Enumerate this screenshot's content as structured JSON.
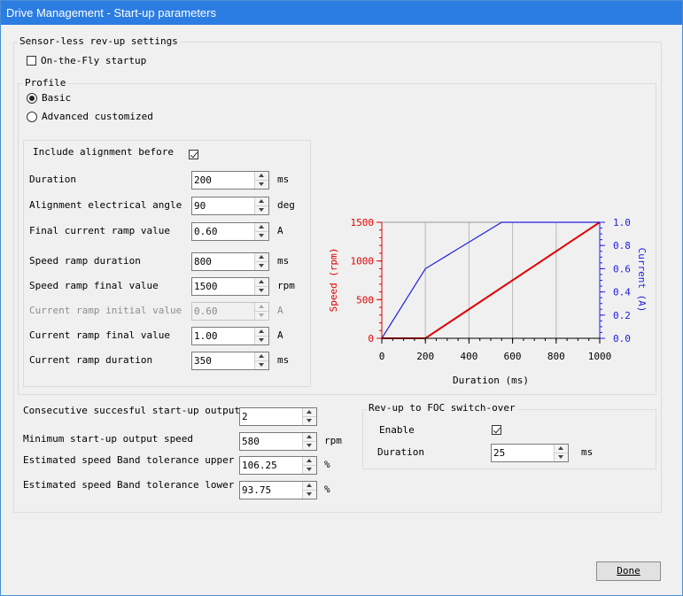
{
  "window": {
    "title": "Drive Management - Start-up parameters"
  },
  "sensorless": {
    "group_title": "Sensor-less rev-up settings",
    "on_the_fly": {
      "label": "On-the-Fly startup",
      "checked": false
    },
    "profile": {
      "group_title": "Profile",
      "options": [
        {
          "label": "Basic",
          "selected": true
        },
        {
          "label": "Advanced customized",
          "selected": false
        }
      ]
    },
    "params": {
      "include_alignment": {
        "label": "Include alignment before",
        "checked": true
      },
      "duration": {
        "label": "Duration",
        "value": "200",
        "unit": "ms"
      },
      "alignment_angle": {
        "label": "Alignment electrical angle",
        "value": "90",
        "unit": "deg"
      },
      "final_current_ramp": {
        "label": "Final current ramp value",
        "value": "0.60",
        "unit": "A"
      },
      "speed_ramp_duration": {
        "label": "Speed ramp duration",
        "value": "800",
        "unit": "ms"
      },
      "speed_ramp_final": {
        "label": "Speed ramp final value",
        "value": "1500",
        "unit": "rpm"
      },
      "current_ramp_initial": {
        "label": "Current ramp initial value",
        "value": "0.60",
        "unit": "A"
      },
      "current_ramp_final": {
        "label": "Current ramp final value",
        "value": "1.00",
        "unit": "A"
      },
      "current_ramp_duration": {
        "label": "Current ramp duration",
        "value": "350",
        "unit": "ms"
      }
    }
  },
  "startup_output": {
    "consecutive": {
      "label": "Consecutive succesful start-up output",
      "value": "2"
    },
    "min_speed": {
      "label": "Minimum start-up output speed",
      "value": "580",
      "unit": "rpm"
    },
    "tol_upper": {
      "label": "Estimated speed Band tolerance upper",
      "value": "106.25",
      "unit": "%"
    },
    "tol_lower": {
      "label": "Estimated speed Band tolerance lower",
      "value": "93.75",
      "unit": "%"
    }
  },
  "foc_switch": {
    "group_title": "Rev-up to FOC switch-over",
    "enable": {
      "label": "Enable",
      "checked": true
    },
    "duration": {
      "label": "Duration",
      "value": "25",
      "unit": "ms"
    }
  },
  "done_label": "Done",
  "chart_data": {
    "type": "line",
    "xlabel": "Duration (ms)",
    "ylabel": "Speed (rpm)",
    "y2label": "Current (A)",
    "xlim": [
      0,
      1000
    ],
    "ylim": [
      0,
      1500
    ],
    "y2lim": [
      0,
      1.0
    ],
    "x_ticks": [
      "0",
      "200",
      "400",
      "600",
      "800",
      "1000"
    ],
    "y_ticks": [
      "0",
      "500",
      "1000",
      "1500"
    ],
    "y2_ticks": [
      "0.0",
      "0.2",
      "0.4",
      "0.6",
      "0.8",
      "1.0"
    ],
    "colors": {
      "speed": "#e00000",
      "current": "#2020e0"
    },
    "series": [
      {
        "axis": "left",
        "color": "#e00000",
        "x": [
          0,
          200,
          1000
        ],
        "y": [
          0,
          0,
          1500
        ]
      },
      {
        "axis": "right",
        "color": "#2020e0",
        "x": [
          0,
          200,
          550,
          1000
        ],
        "y": [
          0,
          0.6,
          1.0,
          1.0
        ]
      }
    ]
  }
}
